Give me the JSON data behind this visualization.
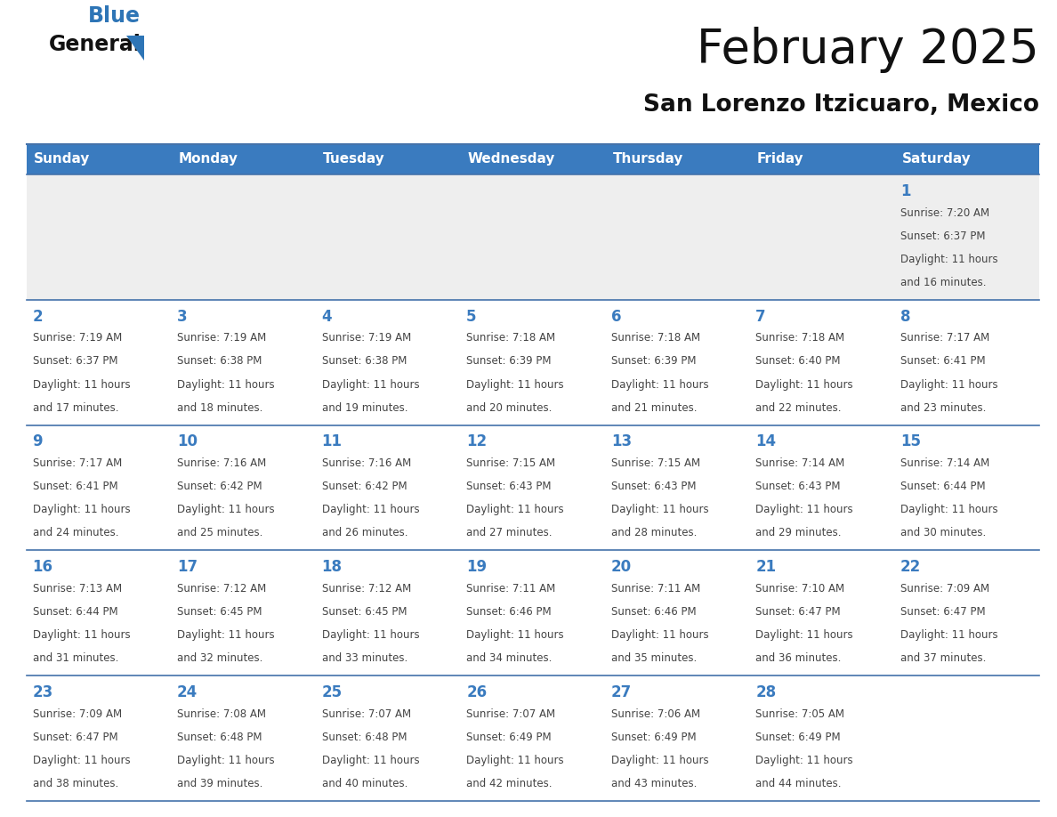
{
  "title": "February 2025",
  "subtitle": "San Lorenzo Itzicuaro, Mexico",
  "header_bg_color": "#3a7bbf",
  "header_text_color": "#ffffff",
  "weekdays": [
    "Sunday",
    "Monday",
    "Tuesday",
    "Wednesday",
    "Thursday",
    "Friday",
    "Saturday"
  ],
  "bg_color": "#ffffff",
  "cell_bg_row0": "#eeeeee",
  "cell_bg_default": "#ffffff",
  "separator_color": "#4472aa",
  "day_number_color": "#3a7bbf",
  "text_color": "#444444",
  "logo_general_color": "#111111",
  "logo_blue_color": "#2e75b6",
  "logo_triangle_color": "#2e75b6",
  "title_color": "#111111",
  "subtitle_color": "#111111",
  "days": [
    {
      "day": 1,
      "col": 6,
      "row": 0,
      "sunrise": "7:20 AM",
      "sunset": "6:37 PM",
      "daylight_line1": "Daylight: 11 hours",
      "daylight_line2": "and 16 minutes."
    },
    {
      "day": 2,
      "col": 0,
      "row": 1,
      "sunrise": "7:19 AM",
      "sunset": "6:37 PM",
      "daylight_line1": "Daylight: 11 hours",
      "daylight_line2": "and 17 minutes."
    },
    {
      "day": 3,
      "col": 1,
      "row": 1,
      "sunrise": "7:19 AM",
      "sunset": "6:38 PM",
      "daylight_line1": "Daylight: 11 hours",
      "daylight_line2": "and 18 minutes."
    },
    {
      "day": 4,
      "col": 2,
      "row": 1,
      "sunrise": "7:19 AM",
      "sunset": "6:38 PM",
      "daylight_line1": "Daylight: 11 hours",
      "daylight_line2": "and 19 minutes."
    },
    {
      "day": 5,
      "col": 3,
      "row": 1,
      "sunrise": "7:18 AM",
      "sunset": "6:39 PM",
      "daylight_line1": "Daylight: 11 hours",
      "daylight_line2": "and 20 minutes."
    },
    {
      "day": 6,
      "col": 4,
      "row": 1,
      "sunrise": "7:18 AM",
      "sunset": "6:39 PM",
      "daylight_line1": "Daylight: 11 hours",
      "daylight_line2": "and 21 minutes."
    },
    {
      "day": 7,
      "col": 5,
      "row": 1,
      "sunrise": "7:18 AM",
      "sunset": "6:40 PM",
      "daylight_line1": "Daylight: 11 hours",
      "daylight_line2": "and 22 minutes."
    },
    {
      "day": 8,
      "col": 6,
      "row": 1,
      "sunrise": "7:17 AM",
      "sunset": "6:41 PM",
      "daylight_line1": "Daylight: 11 hours",
      "daylight_line2": "and 23 minutes."
    },
    {
      "day": 9,
      "col": 0,
      "row": 2,
      "sunrise": "7:17 AM",
      "sunset": "6:41 PM",
      "daylight_line1": "Daylight: 11 hours",
      "daylight_line2": "and 24 minutes."
    },
    {
      "day": 10,
      "col": 1,
      "row": 2,
      "sunrise": "7:16 AM",
      "sunset": "6:42 PM",
      "daylight_line1": "Daylight: 11 hours",
      "daylight_line2": "and 25 minutes."
    },
    {
      "day": 11,
      "col": 2,
      "row": 2,
      "sunrise": "7:16 AM",
      "sunset": "6:42 PM",
      "daylight_line1": "Daylight: 11 hours",
      "daylight_line2": "and 26 minutes."
    },
    {
      "day": 12,
      "col": 3,
      "row": 2,
      "sunrise": "7:15 AM",
      "sunset": "6:43 PM",
      "daylight_line1": "Daylight: 11 hours",
      "daylight_line2": "and 27 minutes."
    },
    {
      "day": 13,
      "col": 4,
      "row": 2,
      "sunrise": "7:15 AM",
      "sunset": "6:43 PM",
      "daylight_line1": "Daylight: 11 hours",
      "daylight_line2": "and 28 minutes."
    },
    {
      "day": 14,
      "col": 5,
      "row": 2,
      "sunrise": "7:14 AM",
      "sunset": "6:43 PM",
      "daylight_line1": "Daylight: 11 hours",
      "daylight_line2": "and 29 minutes."
    },
    {
      "day": 15,
      "col": 6,
      "row": 2,
      "sunrise": "7:14 AM",
      "sunset": "6:44 PM",
      "daylight_line1": "Daylight: 11 hours",
      "daylight_line2": "and 30 minutes."
    },
    {
      "day": 16,
      "col": 0,
      "row": 3,
      "sunrise": "7:13 AM",
      "sunset": "6:44 PM",
      "daylight_line1": "Daylight: 11 hours",
      "daylight_line2": "and 31 minutes."
    },
    {
      "day": 17,
      "col": 1,
      "row": 3,
      "sunrise": "7:12 AM",
      "sunset": "6:45 PM",
      "daylight_line1": "Daylight: 11 hours",
      "daylight_line2": "and 32 minutes."
    },
    {
      "day": 18,
      "col": 2,
      "row": 3,
      "sunrise": "7:12 AM",
      "sunset": "6:45 PM",
      "daylight_line1": "Daylight: 11 hours",
      "daylight_line2": "and 33 minutes."
    },
    {
      "day": 19,
      "col": 3,
      "row": 3,
      "sunrise": "7:11 AM",
      "sunset": "6:46 PM",
      "daylight_line1": "Daylight: 11 hours",
      "daylight_line2": "and 34 minutes."
    },
    {
      "day": 20,
      "col": 4,
      "row": 3,
      "sunrise": "7:11 AM",
      "sunset": "6:46 PM",
      "daylight_line1": "Daylight: 11 hours",
      "daylight_line2": "and 35 minutes."
    },
    {
      "day": 21,
      "col": 5,
      "row": 3,
      "sunrise": "7:10 AM",
      "sunset": "6:47 PM",
      "daylight_line1": "Daylight: 11 hours",
      "daylight_line2": "and 36 minutes."
    },
    {
      "day": 22,
      "col": 6,
      "row": 3,
      "sunrise": "7:09 AM",
      "sunset": "6:47 PM",
      "daylight_line1": "Daylight: 11 hours",
      "daylight_line2": "and 37 minutes."
    },
    {
      "day": 23,
      "col": 0,
      "row": 4,
      "sunrise": "7:09 AM",
      "sunset": "6:47 PM",
      "daylight_line1": "Daylight: 11 hours",
      "daylight_line2": "and 38 minutes."
    },
    {
      "day": 24,
      "col": 1,
      "row": 4,
      "sunrise": "7:08 AM",
      "sunset": "6:48 PM",
      "daylight_line1": "Daylight: 11 hours",
      "daylight_line2": "and 39 minutes."
    },
    {
      "day": 25,
      "col": 2,
      "row": 4,
      "sunrise": "7:07 AM",
      "sunset": "6:48 PM",
      "daylight_line1": "Daylight: 11 hours",
      "daylight_line2": "and 40 minutes."
    },
    {
      "day": 26,
      "col": 3,
      "row": 4,
      "sunrise": "7:07 AM",
      "sunset": "6:49 PM",
      "daylight_line1": "Daylight: 11 hours",
      "daylight_line2": "and 42 minutes."
    },
    {
      "day": 27,
      "col": 4,
      "row": 4,
      "sunrise": "7:06 AM",
      "sunset": "6:49 PM",
      "daylight_line1": "Daylight: 11 hours",
      "daylight_line2": "and 43 minutes."
    },
    {
      "day": 28,
      "col": 5,
      "row": 4,
      "sunrise": "7:05 AM",
      "sunset": "6:49 PM",
      "daylight_line1": "Daylight: 11 hours",
      "daylight_line2": "and 44 minutes."
    }
  ]
}
